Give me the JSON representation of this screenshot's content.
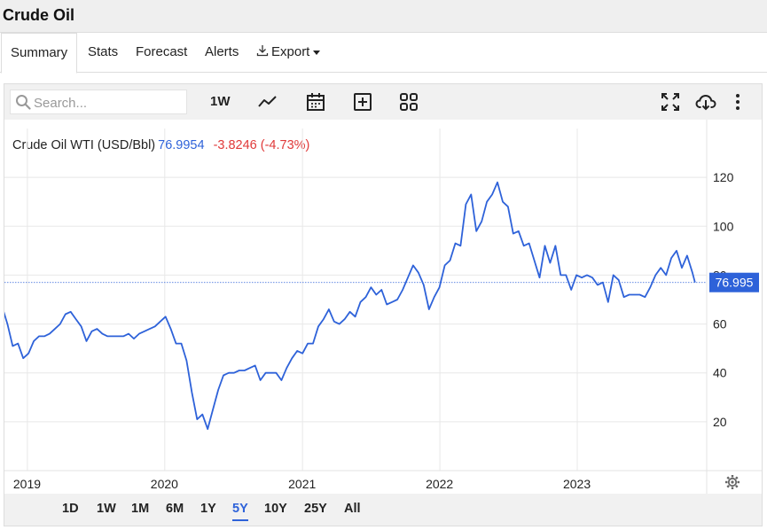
{
  "header": {
    "title": "Crude Oil"
  },
  "tabs": [
    {
      "label": "Summary"
    },
    {
      "label": "Stats"
    },
    {
      "label": "Forecast"
    },
    {
      "label": "Alerts"
    },
    {
      "label": "Export"
    }
  ],
  "toolbar": {
    "search_placeholder": "Search...",
    "interval_label": "1W",
    "icons": [
      "search-icon",
      "line-chart-icon",
      "calendar-icon",
      "plus-square-icon",
      "grid-icon",
      "fullscreen-icon",
      "cloud-download-icon",
      "more-vertical-icon"
    ]
  },
  "legend": {
    "series": "Crude Oil WTI (USD/Bbl)",
    "value": "76.9954",
    "change": "-3.8246 (-4.73%)"
  },
  "colors": {
    "line": "#2e62d9",
    "negative": "#e03a3a",
    "accent": "#2e62d9"
  },
  "range_buttons": [
    "1D",
    "1W",
    "1M",
    "6M",
    "1Y",
    "5Y",
    "10Y",
    "25Y",
    "All"
  ],
  "active_range": "5Y",
  "chart_data": {
    "type": "line",
    "ylim": [
      0,
      140
    ],
    "y_ticks": [
      "20",
      "40",
      "60",
      "80",
      "100",
      "120"
    ],
    "x_ticks": [
      "2019",
      "2020",
      "2021",
      "2022",
      "2023"
    ],
    "grid": true,
    "last_value_label": "76.995",
    "series": [
      {
        "values": [
          [
            "2018-10-26",
            67
          ],
          [
            "2018-11-09",
            60
          ],
          [
            "2018-11-23",
            51
          ],
          [
            "2018-12-07",
            52
          ],
          [
            "2018-12-21",
            46
          ],
          [
            "2019-01-04",
            48
          ],
          [
            "2019-01-18",
            53
          ],
          [
            "2019-02-01",
            55
          ],
          [
            "2019-02-15",
            55
          ],
          [
            "2019-03-01",
            56
          ],
          [
            "2019-03-15",
            58
          ],
          [
            "2019-03-29",
            60
          ],
          [
            "2019-04-12",
            64
          ],
          [
            "2019-04-26",
            65
          ],
          [
            "2019-05-10",
            62
          ],
          [
            "2019-05-24",
            59
          ],
          [
            "2019-06-07",
            53
          ],
          [
            "2019-06-21",
            57
          ],
          [
            "2019-07-05",
            58
          ],
          [
            "2019-07-19",
            56
          ],
          [
            "2019-08-02",
            55
          ],
          [
            "2019-08-16",
            55
          ],
          [
            "2019-08-30",
            55
          ],
          [
            "2019-09-13",
            55
          ],
          [
            "2019-09-27",
            56
          ],
          [
            "2019-10-11",
            54
          ],
          [
            "2019-10-25",
            56
          ],
          [
            "2019-11-08",
            57
          ],
          [
            "2019-11-22",
            58
          ],
          [
            "2019-12-06",
            59
          ],
          [
            "2019-12-20",
            61
          ],
          [
            "2020-01-03",
            63
          ],
          [
            "2020-01-17",
            58
          ],
          [
            "2020-01-31",
            52
          ],
          [
            "2020-02-14",
            52
          ],
          [
            "2020-02-28",
            45
          ],
          [
            "2020-03-13",
            32
          ],
          [
            "2020-03-27",
            21
          ],
          [
            "2020-04-10",
            23
          ],
          [
            "2020-04-24",
            17
          ],
          [
            "2020-05-08",
            25
          ],
          [
            "2020-05-22",
            33
          ],
          [
            "2020-06-05",
            39
          ],
          [
            "2020-06-19",
            40
          ],
          [
            "2020-07-03",
            40
          ],
          [
            "2020-07-17",
            41
          ],
          [
            "2020-07-31",
            41
          ],
          [
            "2020-08-14",
            42
          ],
          [
            "2020-08-28",
            43
          ],
          [
            "2020-09-11",
            37
          ],
          [
            "2020-09-25",
            40
          ],
          [
            "2020-10-09",
            40
          ],
          [
            "2020-10-23",
            40
          ],
          [
            "2020-11-06",
            37
          ],
          [
            "2020-11-20",
            42
          ],
          [
            "2020-12-04",
            46
          ],
          [
            "2020-12-18",
            49
          ],
          [
            "2021-01-01",
            48
          ],
          [
            "2021-01-15",
            52
          ],
          [
            "2021-01-29",
            52
          ],
          [
            "2021-02-12",
            59
          ],
          [
            "2021-02-26",
            62
          ],
          [
            "2021-03-12",
            66
          ],
          [
            "2021-03-26",
            61
          ],
          [
            "2021-04-09",
            60
          ],
          [
            "2021-04-23",
            62
          ],
          [
            "2021-05-07",
            65
          ],
          [
            "2021-05-21",
            63
          ],
          [
            "2021-06-04",
            69
          ],
          [
            "2021-06-18",
            71
          ],
          [
            "2021-07-02",
            75
          ],
          [
            "2021-07-16",
            72
          ],
          [
            "2021-07-30",
            74
          ],
          [
            "2021-08-13",
            68
          ],
          [
            "2021-08-27",
            69
          ],
          [
            "2021-09-10",
            70
          ],
          [
            "2021-09-24",
            74
          ],
          [
            "2021-10-08",
            79
          ],
          [
            "2021-10-22",
            84
          ],
          [
            "2021-11-05",
            81
          ],
          [
            "2021-11-19",
            76
          ],
          [
            "2021-12-03",
            66
          ],
          [
            "2021-12-17",
            71
          ],
          [
            "2021-12-31",
            75
          ],
          [
            "2022-01-14",
            84
          ],
          [
            "2022-01-28",
            86
          ],
          [
            "2022-02-11",
            93
          ],
          [
            "2022-02-25",
            92
          ],
          [
            "2022-03-11",
            109
          ],
          [
            "2022-03-25",
            113
          ],
          [
            "2022-04-08",
            98
          ],
          [
            "2022-04-22",
            102
          ],
          [
            "2022-05-06",
            110
          ],
          [
            "2022-05-20",
            113
          ],
          [
            "2022-06-03",
            118
          ],
          [
            "2022-06-17",
            110
          ],
          [
            "2022-07-01",
            108
          ],
          [
            "2022-07-15",
            97
          ],
          [
            "2022-07-29",
            98
          ],
          [
            "2022-08-12",
            92
          ],
          [
            "2022-08-26",
            93
          ],
          [
            "2022-09-09",
            86
          ],
          [
            "2022-09-23",
            79
          ],
          [
            "2022-10-07",
            92
          ],
          [
            "2022-10-21",
            85
          ],
          [
            "2022-11-04",
            92
          ],
          [
            "2022-11-18",
            80
          ],
          [
            "2022-12-02",
            80
          ],
          [
            "2022-12-16",
            74
          ],
          [
            "2022-12-30",
            80
          ],
          [
            "2023-01-13",
            79
          ],
          [
            "2023-01-27",
            80
          ],
          [
            "2023-02-10",
            79
          ],
          [
            "2023-02-24",
            76
          ],
          [
            "2023-03-10",
            77
          ],
          [
            "2023-03-24",
            69
          ],
          [
            "2023-04-07",
            80
          ],
          [
            "2023-04-21",
            78
          ],
          [
            "2023-05-05",
            71
          ],
          [
            "2023-05-19",
            72
          ],
          [
            "2023-06-02",
            72
          ],
          [
            "2023-06-16",
            72
          ],
          [
            "2023-06-30",
            71
          ],
          [
            "2023-07-14",
            75
          ],
          [
            "2023-07-28",
            80
          ],
          [
            "2023-08-11",
            83
          ],
          [
            "2023-08-25",
            80
          ],
          [
            "2023-09-08",
            87
          ],
          [
            "2023-09-22",
            90
          ],
          [
            "2023-10-06",
            83
          ],
          [
            "2023-10-20",
            88
          ],
          [
            "2023-11-03",
            81
          ],
          [
            "2023-11-10",
            77
          ]
        ]
      }
    ]
  }
}
